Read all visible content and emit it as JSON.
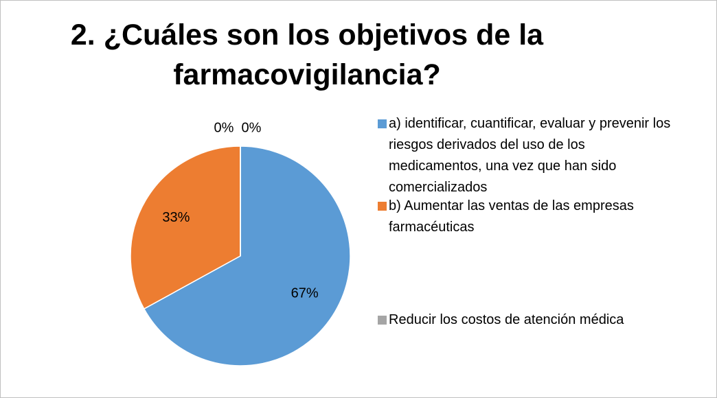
{
  "chart_data": {
    "type": "pie",
    "title": "2. ¿Cuáles son los objetivos de la farmacovigilancia?",
    "categories": [
      "a) identificar, cuantificar, evaluar y prevenir  los riesgos derivados del uso de los medicamentos, una vez que han sido comercializados",
      "b) Aumentar las ventas de las empresas farmacéuticas",
      null,
      "Reducir los costos de atención médica"
    ],
    "values": [
      67,
      33,
      0,
      0
    ],
    "value_labels": [
      "67%",
      "33%",
      "0%",
      "0%"
    ],
    "colors": [
      "#5b9bd5",
      "#ed7d31",
      "#ffc000",
      "#a5a5a5"
    ],
    "legend": "right"
  }
}
